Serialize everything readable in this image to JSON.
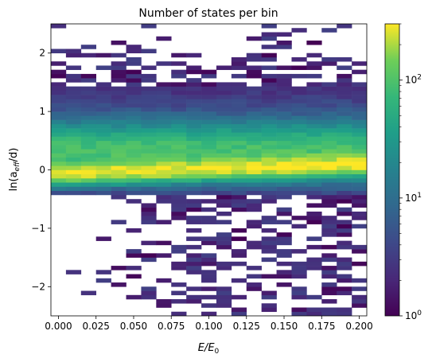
{
  "chart_data": {
    "type": "heatmap",
    "title": "Number of states per bin",
    "xlabel_main": "E/E",
    "xlabel_sub": "0",
    "ylabel_prefix": "ln(a",
    "ylabel_sub": "eff",
    "ylabel_suffix": "/d)",
    "xlim": [
      -0.005,
      0.205
    ],
    "ylim": [
      -2.5,
      2.5
    ],
    "x_ticks": [
      {
        "value": 0.0,
        "label": "0.000"
      },
      {
        "value": 0.025,
        "label": "0.025"
      },
      {
        "value": 0.05,
        "label": "0.050"
      },
      {
        "value": 0.075,
        "label": "0.075"
      },
      {
        "value": 0.1,
        "label": "0.100"
      },
      {
        "value": 0.125,
        "label": "0.125"
      },
      {
        "value": 0.15,
        "label": "0.150"
      },
      {
        "value": 0.175,
        "label": "0.175"
      },
      {
        "value": 0.2,
        "label": "0.200"
      }
    ],
    "y_ticks": [
      {
        "value": -2,
        "label": "−2"
      },
      {
        "value": -1,
        "label": "−1"
      },
      {
        "value": 0,
        "label": "0"
      },
      {
        "value": 1,
        "label": "1"
      },
      {
        "value": 2,
        "label": "2"
      }
    ],
    "x_bins": 21,
    "y_bins": 70,
    "colorbar": {
      "scale": "log",
      "colormap": "viridis",
      "range": [
        1,
        300
      ],
      "ticks": [
        {
          "value": 1,
          "base": "10",
          "exp": "0"
        },
        {
          "value": 10,
          "base": "10",
          "exp": "1"
        },
        {
          "value": 100,
          "base": "10",
          "exp": "2"
        }
      ]
    },
    "description_rows": [
      {
        "y": 2.4,
        "counts_low": 1
      },
      {
        "y": 0.0,
        "count_peak": 250
      },
      {
        "y": -2.4,
        "counts_low": 1
      }
    ],
    "profile": {
      "peak_lower": {
        "y_at_x0": -0.07,
        "y_at_x02": 0.1,
        "count": 250
      },
      "peak_upper": {
        "y_at_x0": 0.3,
        "y_at_x02": 0.3,
        "count": 90
      },
      "dense_band": [
        -0.4,
        1.4
      ],
      "sparse_above": [
        1.4,
        2.5
      ],
      "sparse_below": [
        -2.5,
        -0.4
      ],
      "lower_edge_empty_until_x": 0.015
    }
  }
}
